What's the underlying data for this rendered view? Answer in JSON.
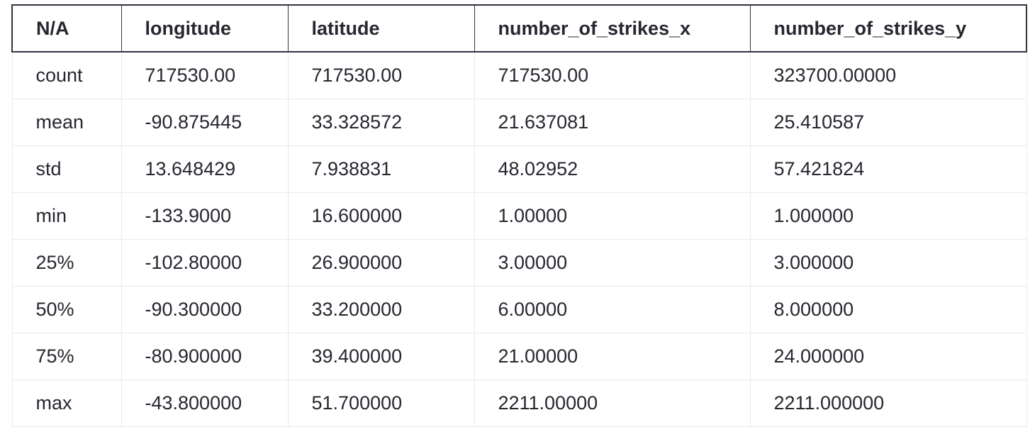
{
  "table": {
    "headers": [
      "N/A",
      "longitude",
      "latitude",
      "number_of_strikes_x",
      "number_of_strikes_y"
    ],
    "rows": [
      [
        "count",
        "717530.00",
        "717530.00",
        "717530.00",
        "323700.00000"
      ],
      [
        "mean",
        "-90.875445",
        "33.328572",
        "21.637081",
        "25.410587"
      ],
      [
        "std",
        "13.648429",
        "7.938831",
        "48.02952",
        "57.421824"
      ],
      [
        "min",
        "-133.9000",
        "16.600000",
        "1.00000",
        "1.000000"
      ],
      [
        "25%",
        "-102.80000",
        "26.900000",
        "3.00000",
        "3.000000"
      ],
      [
        "50%",
        "-90.300000",
        "33.200000",
        "6.00000",
        "8.000000"
      ],
      [
        "75%",
        "-80.900000",
        "39.400000",
        "21.00000",
        "24.000000"
      ],
      [
        "max",
        "-43.800000",
        "51.700000",
        "2211.00000",
        "2211.000000"
      ]
    ]
  }
}
